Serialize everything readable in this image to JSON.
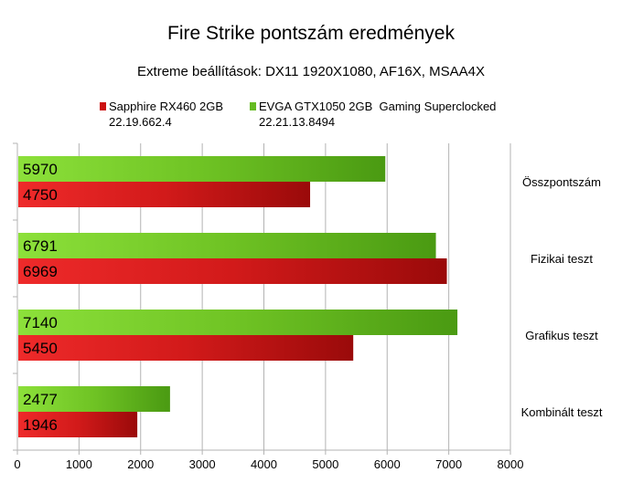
{
  "chart_data": {
    "type": "bar",
    "orientation": "horizontal",
    "title": "Fire Strike pontszám eredmények",
    "subtitle": "Extreme beállítások: DX11 1920X1080, AF16X, MSAA4X",
    "categories": [
      "Összpontszám",
      "Fizikai teszt",
      "Grafikus teszt",
      "Kombinált teszt"
    ],
    "series": [
      {
        "name": "EVGA GTX1050 2GB  Gaming Superclocked",
        "driver": "22.21.13.8494",
        "color": "#66bb22",
        "values": [
          5970,
          6791,
          7140,
          2477
        ]
      },
      {
        "name": "Sapphire RX460 2GB",
        "driver": "22.19.662.4",
        "color": "#cc1111",
        "values": [
          4750,
          6969,
          5450,
          1946
        ]
      }
    ],
    "xlim": [
      0,
      8000
    ],
    "xticks": [
      0,
      1000,
      2000,
      3000,
      4000,
      5000,
      6000,
      7000,
      8000
    ],
    "grid": true,
    "legend": "top"
  }
}
